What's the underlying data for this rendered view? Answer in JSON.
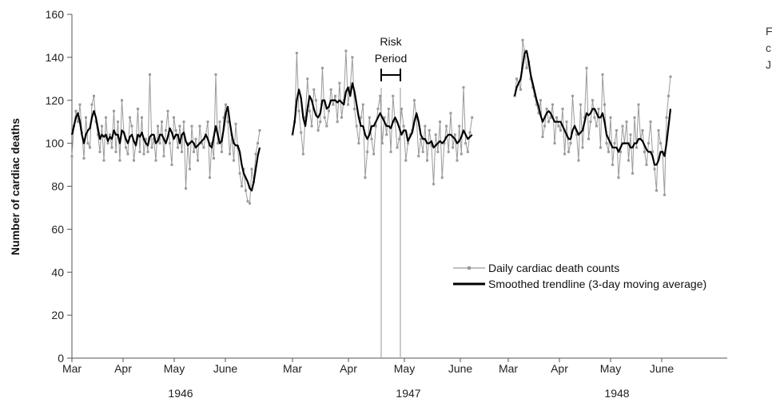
{
  "side_text": [
    "F",
    "c",
    "J"
  ],
  "chart_data": {
    "type": "line",
    "title": "",
    "xlabel": "",
    "ylabel": "Number of cardiac deaths",
    "ylim": [
      0,
      160
    ],
    "yticks": [
      0,
      20,
      40,
      60,
      80,
      100,
      120,
      140,
      160
    ],
    "years": [
      {
        "label": "1946",
        "months": [
          "Mar",
          "Apr",
          "May",
          "June"
        ]
      },
      {
        "label": "1947",
        "months": [
          "Mar",
          "Apr",
          "May",
          "June"
        ]
      },
      {
        "label": "1948",
        "months": [
          "Mar",
          "Apr",
          "May",
          "June"
        ]
      }
    ],
    "annotation": {
      "line1": "Risk",
      "line2": "Period"
    },
    "legend": {
      "position": "lower-right",
      "daily": "Daily cardiac death counts",
      "smoothed": "Smoothed trendline (3-day moving average)"
    },
    "colors": {
      "daily": "#9a9a9a",
      "smoothed": "#000000",
      "axis": "#555555"
    },
    "series": [
      {
        "name": "Daily cardiac death counts",
        "segments": [
          [
            94,
            108,
            115,
            110,
            118,
            105,
            93,
            112,
            100,
            98,
            118,
            122,
            110,
            104,
            96,
            108,
            92,
            112,
            100,
            104,
            98,
            115,
            96,
            110,
            92,
            120,
            105,
            98,
            95,
            112,
            108,
            92,
            100,
            116,
            96,
            112,
            95,
            102,
            96,
            132,
            98,
            102,
            92,
            108,
            100,
            110,
            94,
            106,
            115,
            100,
            90,
            112,
            106,
            98,
            108,
            96,
            110,
            79,
            100,
            88,
            108,
            96,
            102,
            92,
            108,
            100,
            98,
            104,
            110,
            84,
            100,
            93,
            132,
            100,
            110,
            96,
            112,
            118,
            110,
            95,
            104,
            92,
            109,
            98,
            86,
            80,
            88,
            78,
            73,
            72,
            88,
            82,
            95,
            100,
            106
          ],
          [
            104,
            110,
            142,
            115,
            105,
            95,
            112,
            130,
            115,
            108,
            125,
            120,
            106,
            110,
            135,
            112,
            108,
            115,
            125,
            118,
            122,
            110,
            128,
            112,
            120,
            143,
            118,
            126,
            140,
            116,
            108,
            100,
            112,
            118,
            84,
            96,
            112,
            102,
            95,
            108,
            116,
            122,
            100,
            112,
            104,
            116,
            96,
            122,
            110,
            98,
            102,
            116,
            108,
            92,
            100,
            104,
            106,
            120,
            112,
            94,
            102,
            96,
            108,
            92,
            106,
            99,
            81,
            104,
            96,
            110,
            84,
            100,
            108,
            96,
            114,
            98,
            104,
            92,
            108,
            95,
            126,
            100,
            96,
            105,
            112
          ],
          [
            122,
            130,
            128,
            125,
            148,
            143,
            135,
            138,
            130,
            126,
            122,
            118,
            114,
            120,
            103,
            108,
            116,
            110,
            112,
            118,
            100,
            112,
            108,
            106,
            116,
            95,
            110,
            96,
            100,
            122,
            108,
            104,
            92,
            118,
            98,
            112,
            135,
            102,
            110,
            120,
            112,
            108,
            116,
            98,
            132,
            118,
            100,
            96,
            112,
            90,
            100,
            106,
            84,
            96,
            108,
            100,
            110,
            92,
            104,
            86,
            112,
            98,
            118,
            102,
            106,
            96,
            90,
            100,
            110,
            96,
            88,
            78,
            106,
            100,
            96,
            76,
            112,
            122,
            131
          ]
        ]
      },
      {
        "name": "Smoothed trendline (3-day moving average)",
        "segments": [
          [
            104,
            108,
            112,
            114,
            110,
            104,
            100,
            104,
            106,
            107,
            112,
            115,
            112,
            107,
            102,
            104,
            103,
            104,
            101,
            103,
            102,
            106,
            104,
            104,
            100,
            106,
            105,
            102,
            100,
            103,
            104,
            101,
            99,
            104,
            103,
            105,
            102,
            100,
            99,
            103,
            104,
            104,
            100,
            101,
            104,
            104,
            102,
            100,
            103,
            107,
            105,
            102,
            104,
            104,
            100,
            104,
            105,
            101,
            99,
            100,
            101,
            100,
            98,
            99,
            100,
            101,
            102,
            104,
            102,
            99,
            98,
            103,
            108,
            104,
            100,
            101,
            107,
            114,
            117,
            110,
            104,
            100,
            99,
            99,
            96,
            90,
            86,
            84,
            82,
            79,
            78,
            82,
            88,
            94,
            98
          ],
          [
            104,
            110,
            120,
            125,
            121,
            112,
            108,
            116,
            122,
            120,
            116,
            113,
            112,
            114,
            120,
            120,
            116,
            117,
            120,
            120,
            120,
            119,
            120,
            119,
            118,
            124,
            126,
            122,
            128,
            124,
            118,
            112,
            108,
            108,
            104,
            102,
            104,
            108,
            108,
            110,
            112,
            114,
            112,
            110,
            108,
            108,
            107,
            110,
            112,
            110,
            107,
            104,
            106,
            106,
            101,
            103,
            105,
            110,
            114,
            110,
            104,
            102,
            102,
            100,
            100,
            101,
            98,
            99,
            100,
            101,
            100,
            101,
            103,
            104,
            104,
            103,
            102,
            100,
            101,
            103,
            106,
            104,
            102,
            103,
            104
          ],
          [
            122,
            126,
            128,
            130,
            136,
            142,
            143,
            138,
            132,
            128,
            124,
            120,
            117,
            113,
            110,
            112,
            114,
            115,
            114,
            112,
            110,
            110,
            110,
            110,
            108,
            106,
            104,
            102,
            102,
            106,
            108,
            106,
            104,
            105,
            106,
            110,
            114,
            113,
            114,
            116,
            116,
            114,
            112,
            112,
            114,
            110,
            104,
            102,
            100,
            98,
            98,
            98,
            96,
            98,
            100,
            100,
            100,
            100,
            98,
            98,
            100,
            100,
            102,
            102,
            101,
            99,
            97,
            96,
            96,
            94,
            90,
            90,
            92,
            96,
            96,
            94,
            100,
            108,
            116
          ]
        ]
      }
    ]
  }
}
